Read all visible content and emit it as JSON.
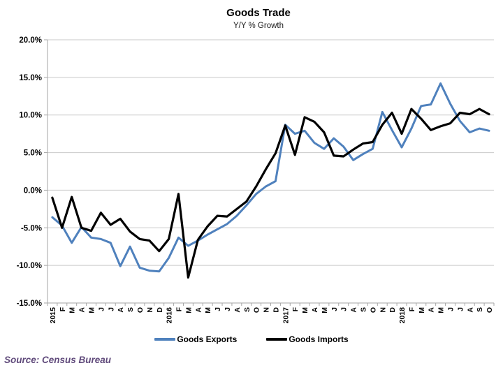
{
  "chart_data": {
    "type": "line",
    "title": "Goods Trade",
    "subtitle": "Y/Y % Growth",
    "categories": [
      "2015",
      "F",
      "M",
      "A",
      "M",
      "J",
      "J",
      "A",
      "S",
      "O",
      "N",
      "D",
      "2016",
      "F",
      "M",
      "A",
      "M",
      "J",
      "J",
      "A",
      "S",
      "O",
      "N",
      "D",
      "2017",
      "F",
      "M",
      "A",
      "M",
      "J",
      "J",
      "A",
      "S",
      "O",
      "N",
      "D",
      "2018",
      "F",
      "M",
      "A",
      "M",
      "J",
      "J",
      "A",
      "S",
      "O"
    ],
    "series": [
      {
        "name": "Goods Exports",
        "color": "#4F81BD",
        "values": [
          -3.6,
          -4.7,
          -7.0,
          -4.9,
          -6.3,
          -6.5,
          -7.0,
          -10.1,
          -7.5,
          -10.3,
          -10.7,
          -10.8,
          -9.0,
          -6.3,
          -7.4,
          -6.7,
          -5.9,
          -5.2,
          -4.5,
          -3.4,
          -2.0,
          -0.5,
          0.5,
          1.2,
          8.7,
          7.5,
          7.9,
          6.3,
          5.5,
          6.9,
          5.8,
          4.0,
          4.8,
          5.5,
          10.4,
          8.0,
          5.7,
          8.2,
          11.2,
          11.4,
          14.2,
          11.5,
          9.2,
          7.7,
          8.2,
          7.9
        ]
      },
      {
        "name": "Goods Imports",
        "color": "#000000",
        "values": [
          -1.0,
          -5.0,
          -0.9,
          -5.0,
          -5.4,
          -3.0,
          -4.6,
          -3.8,
          -5.5,
          -6.5,
          -6.7,
          -8.1,
          -6.5,
          -0.5,
          -11.6,
          -6.6,
          -4.8,
          -3.4,
          -3.5,
          -2.5,
          -1.5,
          0.5,
          2.8,
          4.9,
          8.6,
          4.7,
          9.7,
          9.1,
          7.7,
          4.6,
          4.5,
          5.4,
          6.2,
          6.4,
          8.7,
          10.3,
          7.5,
          10.8,
          9.5,
          8.0,
          8.5,
          8.9,
          10.3,
          10.1,
          10.8,
          10.1
        ]
      }
    ],
    "ylim": [
      -15,
      20
    ],
    "ytick_step": 5,
    "ytick_suffix": "%",
    "grid": true,
    "legend_position": "bottom"
  },
  "source_note": "Source: Census Bureau",
  "colors": {
    "source_text": "#604A7B",
    "gridline": "#C9C9C9",
    "axis": "#A6A6A6",
    "background": "#FFFFFF"
  }
}
